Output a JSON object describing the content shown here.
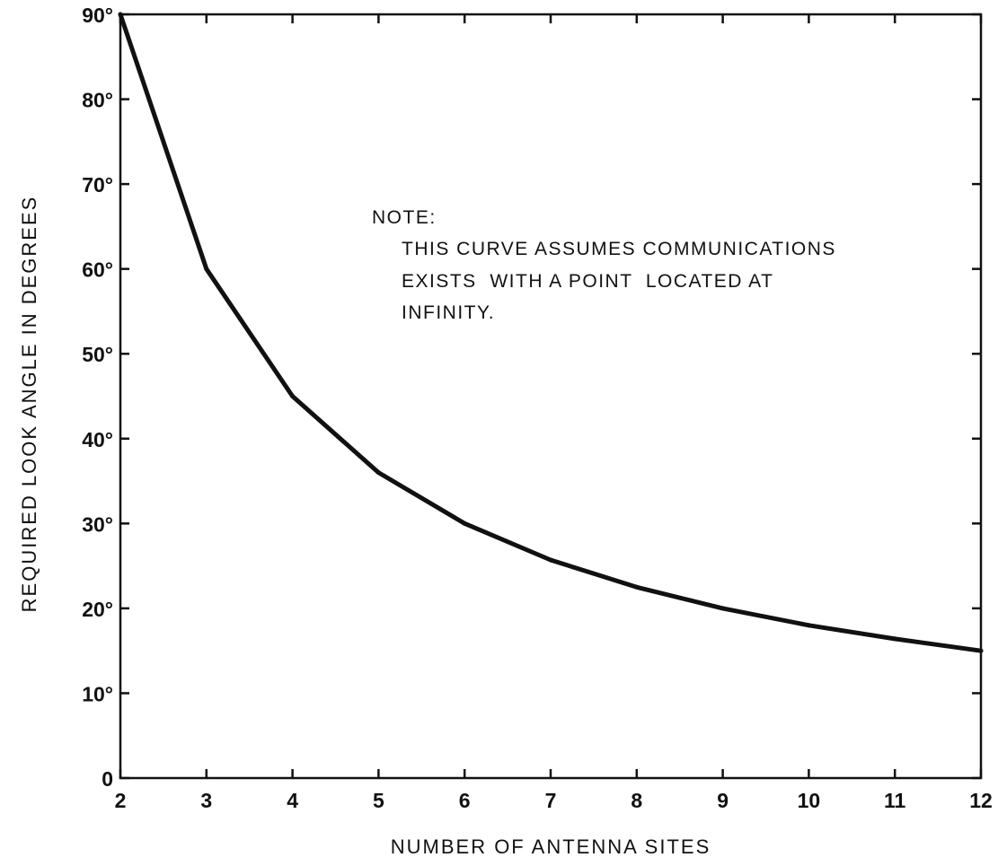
{
  "chart_data": {
    "type": "line",
    "title": "",
    "xlabel": "NUMBER OF ANTENNA SITES",
    "ylabel": "REQUIRED LOOK ANGLE IN DEGREES",
    "xlim": [
      2,
      12
    ],
    "ylim": [
      0,
      90
    ],
    "x_ticks": [
      2,
      3,
      4,
      5,
      6,
      7,
      8,
      9,
      10,
      11,
      12
    ],
    "x_tick_labels": [
      "2",
      "3",
      "4",
      "5",
      "6",
      "7",
      "8",
      "9",
      "10",
      "11",
      "12"
    ],
    "y_ticks": [
      0,
      10,
      20,
      30,
      40,
      50,
      60,
      70,
      80,
      90
    ],
    "y_tick_labels": [
      "0",
      "10°",
      "20°",
      "30°",
      "40°",
      "50°",
      "60°",
      "70°",
      "80°",
      "90°"
    ],
    "grid": false,
    "series": [
      {
        "x": [
          2,
          3,
          4,
          5,
          6,
          7,
          8,
          9,
          10,
          11,
          12
        ],
        "values": [
          90,
          60,
          45,
          36,
          30,
          25.7,
          22.5,
          20,
          18,
          16.4,
          15
        ]
      }
    ],
    "annotation": {
      "lines": [
        "NOTE:",
        "THIS CURVE ASSUMES COMMUNICATIONS",
        "EXISTS  WITH A POINT  LOCATED AT",
        "INFINITY."
      ]
    },
    "colors": {
      "line": "#111111",
      "axes": "#111111"
    }
  }
}
